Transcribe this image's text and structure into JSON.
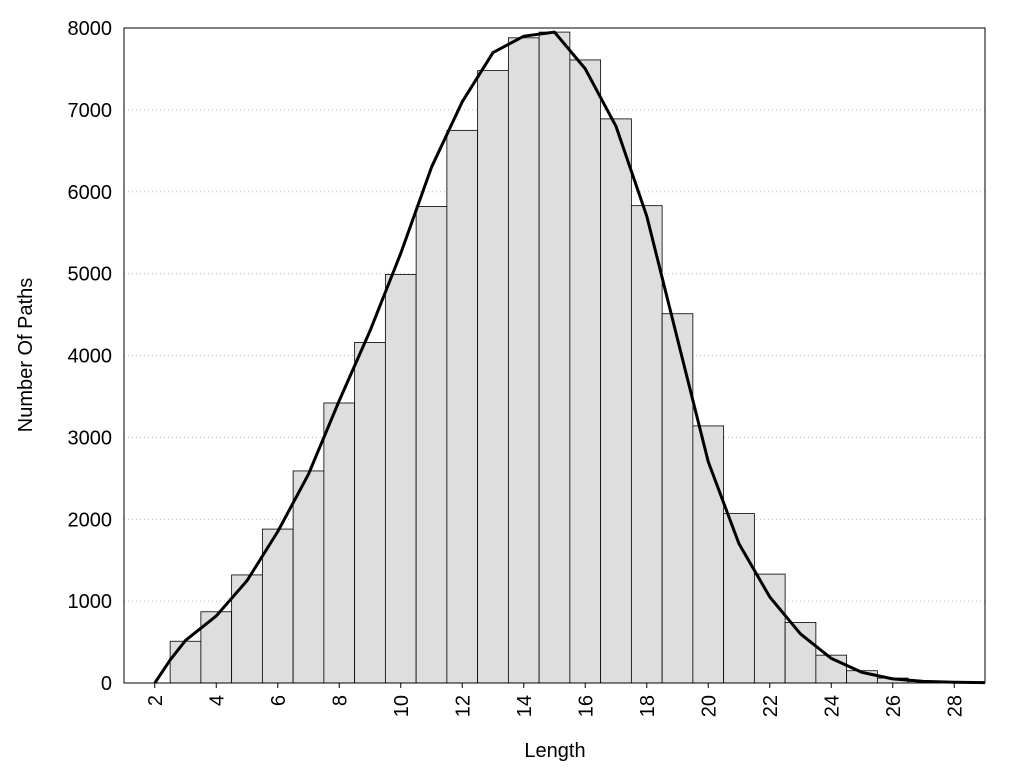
{
  "chart_data": {
    "type": "histogram",
    "x_label": "Length",
    "y_label": "Number Of Paths",
    "bins": [
      2.5,
      3.5,
      4.5,
      5.5,
      6.5,
      7.5,
      8.5,
      9.5,
      10.5,
      11.5,
      12.5,
      13.5,
      14.5,
      15.5,
      16.5,
      17.5,
      18.5,
      19.5,
      20.5,
      21.5,
      22.5,
      23.5,
      24.5,
      25.5,
      26.5,
      27.5,
      28.5
    ],
    "values": [
      510,
      870,
      1320,
      1880,
      2590,
      3420,
      4160,
      4990,
      5820,
      6750,
      7480,
      7880,
      7950,
      7610,
      6890,
      5830,
      4510,
      3140,
      2070,
      1330,
      740,
      340,
      150,
      60,
      20,
      10
    ],
    "color": "#dedede",
    "curve": {
      "color": "#000000",
      "x": [
        2,
        2.5,
        3,
        4,
        5,
        6,
        7,
        8,
        9,
        10,
        11,
        12,
        13,
        14,
        15,
        16,
        17,
        18,
        19,
        20,
        21,
        22,
        23,
        24,
        25,
        26,
        27,
        28,
        29
      ],
      "values": [
        0,
        280,
        520,
        820,
        1250,
        1850,
        2550,
        3450,
        4300,
        5250,
        6300,
        7100,
        7700,
        7900,
        7950,
        7500,
        6800,
        5700,
        4200,
        2700,
        1700,
        1050,
        600,
        300,
        130,
        50,
        20,
        10,
        5
      ]
    },
    "xlim": [
      1,
      29
    ],
    "ylim": [
      0,
      8000
    ],
    "xticks": [
      2,
      4,
      6,
      8,
      10,
      12,
      14,
      16,
      18,
      20,
      22,
      24,
      26,
      28
    ],
    "yticks": [
      0,
      1000,
      2000,
      3000,
      4000,
      5000,
      6000,
      7000,
      8000
    ],
    "grid": true
  }
}
